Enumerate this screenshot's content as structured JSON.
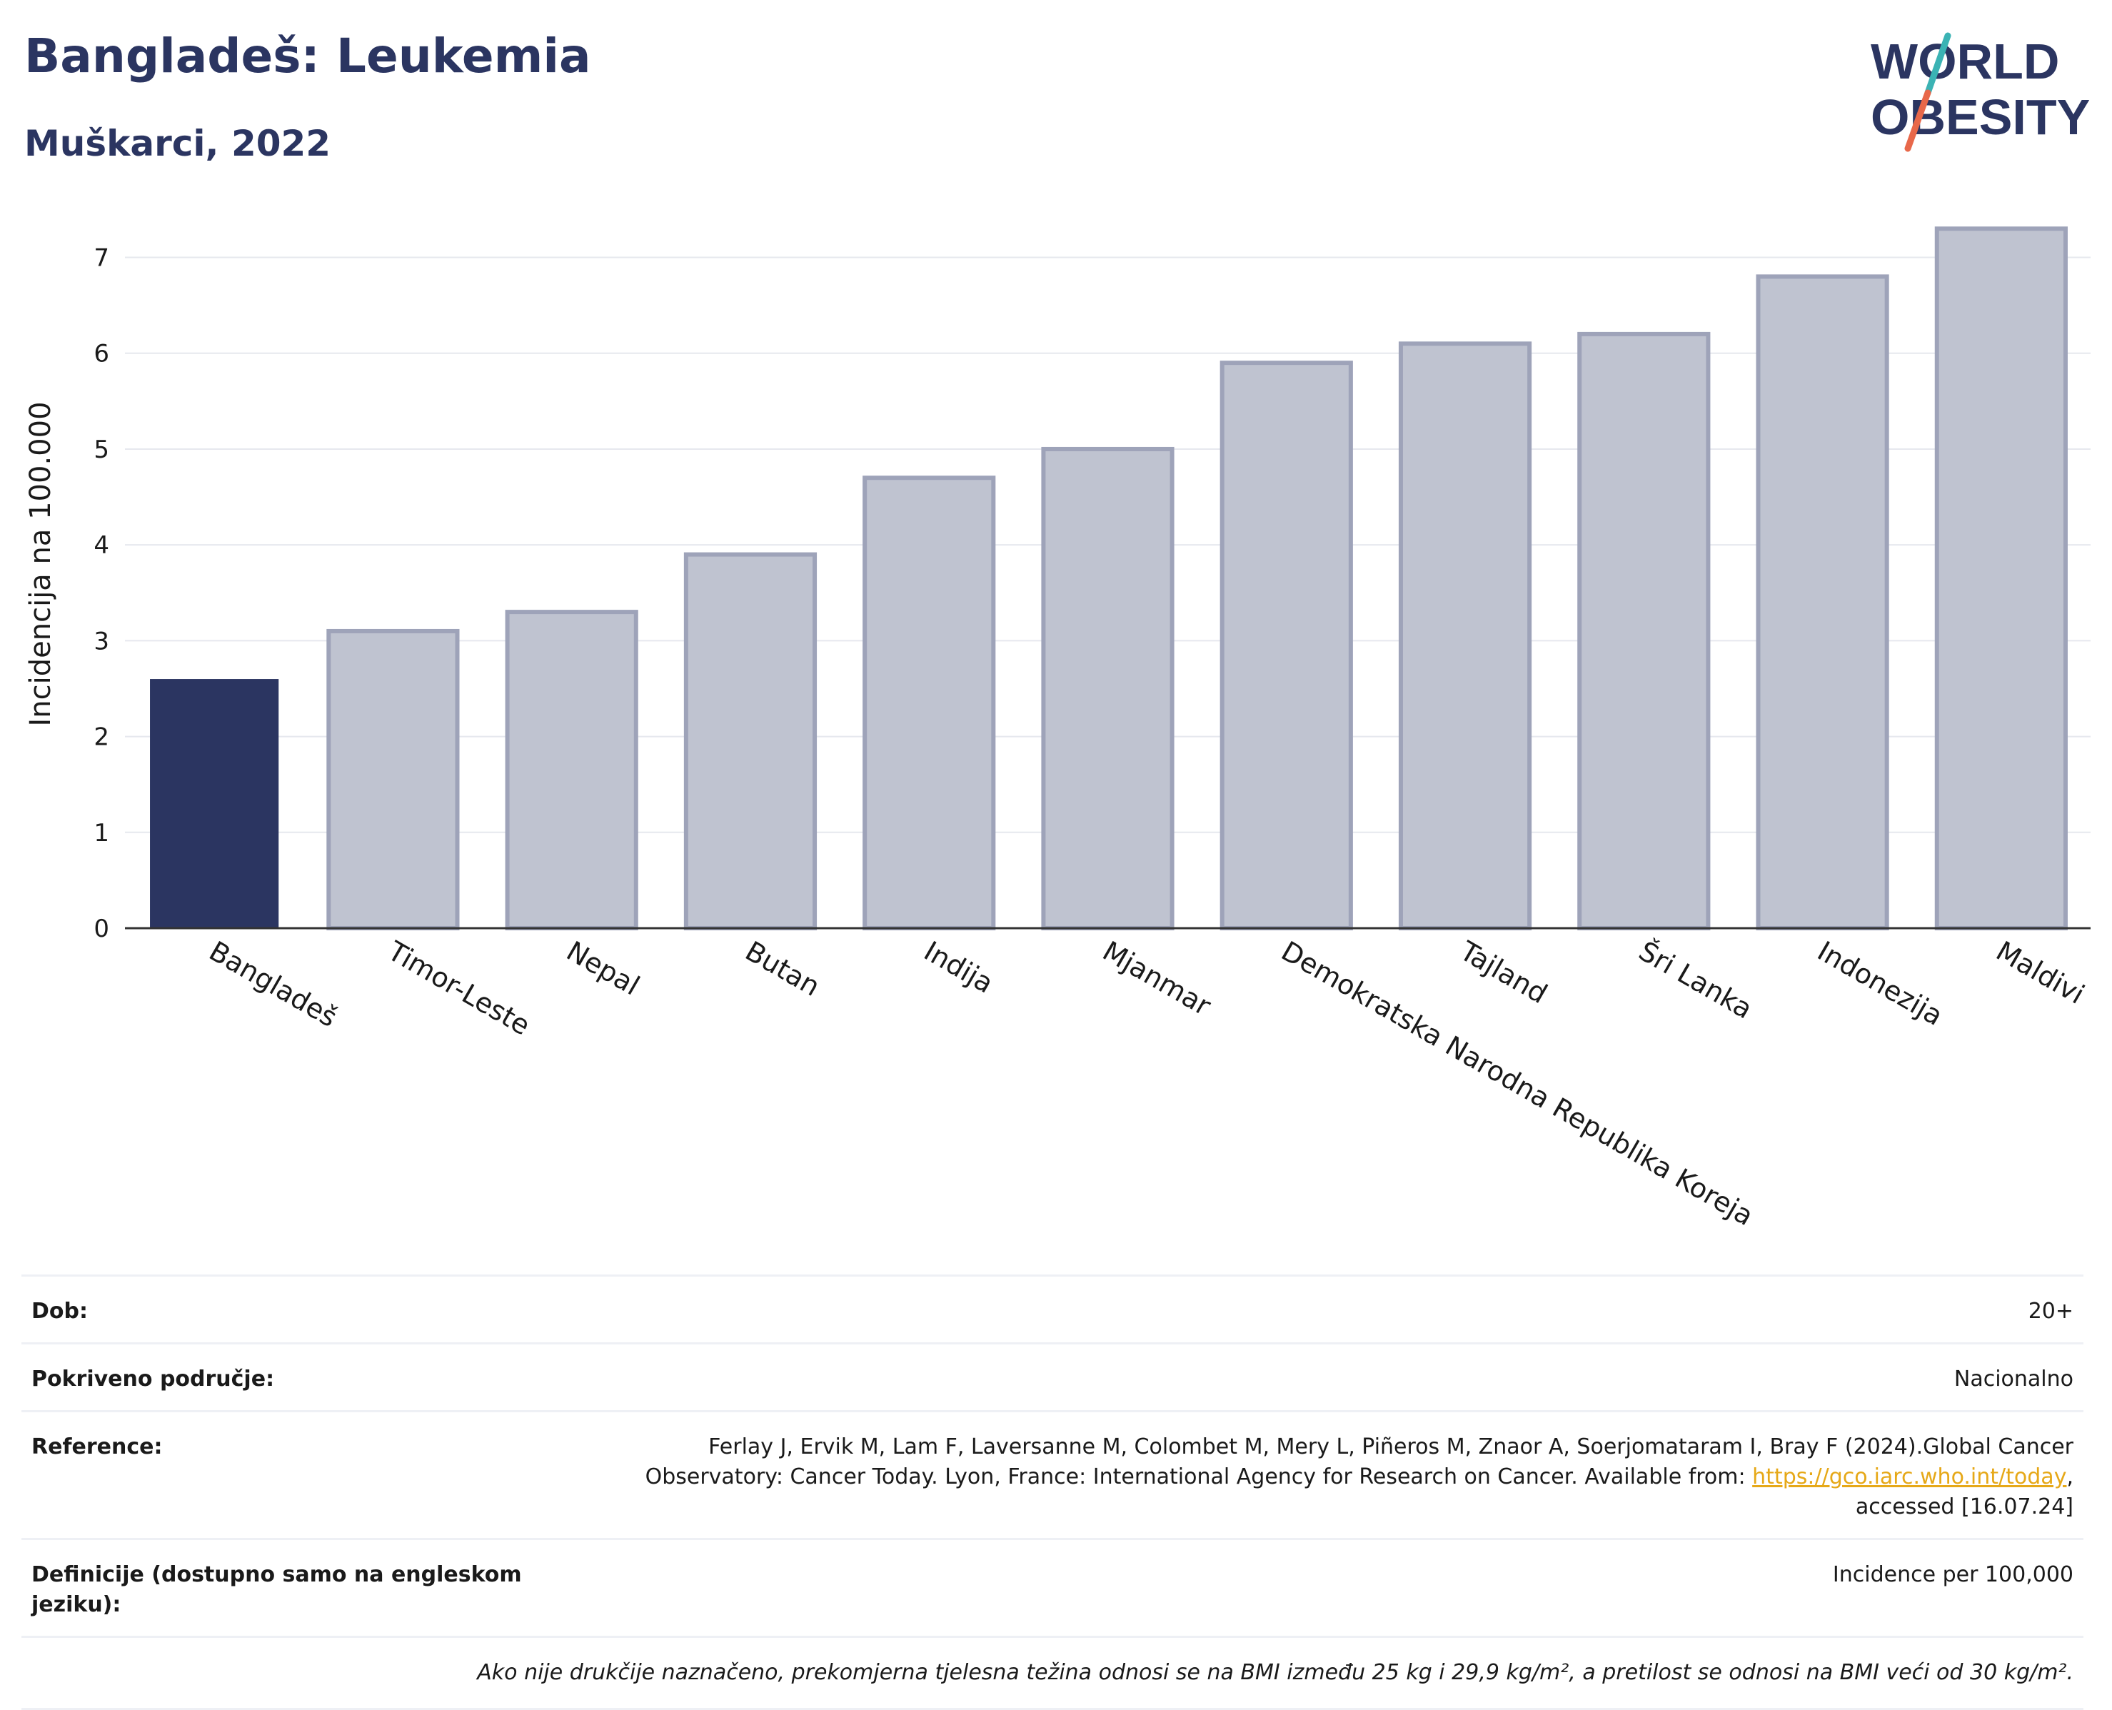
{
  "header": {
    "title": "Bangladeš: Leukemia",
    "subtitle": "Muškarci, 2022"
  },
  "logo": {
    "line1": "WORLD",
    "line2": "OBESITY",
    "accent_colors": [
      "#3bb3b4",
      "#e8684a"
    ],
    "text_color": "#2b3561"
  },
  "chart_data": {
    "type": "bar",
    "title": "Bangladeš: Leukemia",
    "subtitle": "Muškarci, 2022",
    "ylabel": "Incidencija na 100.000",
    "xlabel": "",
    "ylim": [
      0,
      7.6
    ],
    "yticks": [
      0,
      1,
      2,
      3,
      4,
      5,
      6,
      7
    ],
    "grid": true,
    "categories": [
      "Bangladeš",
      "Timor-Leste",
      "Nepal",
      "Butan",
      "Indija",
      "Mjanmar",
      "Demokratska Narodna Republika Koreja",
      "Tajland",
      "Šri Lanka",
      "Indonezija",
      "Maldivi"
    ],
    "values": [
      2.6,
      3.1,
      3.3,
      3.9,
      4.7,
      5.0,
      5.9,
      6.1,
      6.2,
      6.8,
      7.3
    ],
    "highlight_index": 0,
    "colors": {
      "highlight": "#2b3561",
      "other": "#bfc3d0",
      "other_border": "#9ea3b9"
    }
  },
  "meta": {
    "rows": [
      {
        "key": "Dob:",
        "value": "20+"
      },
      {
        "key": "Pokriveno područje:",
        "value": "Nacionalno"
      },
      {
        "key": "Reference:",
        "value_pre": "Ferlay J, Ervik M, Lam F, Laversanne M, Colombet M, Mery L, Piñeros M, Znaor A, Soerjomataram I, Bray F (2024).Global Cancer Observatory: Cancer Today. Lyon, France: International Agency for Research on Cancer. Available from: ",
        "link": "https://gco.iarc.who.int/today",
        "value_post": ", accessed [16.07.24]"
      },
      {
        "key": "Definicije (dostupno samo na engleskom jeziku):",
        "value": "Incidence per 100,000"
      }
    ],
    "note": "Ako nije drukčije naznačeno, prekomjerna tjelesna težina odnosi se na BMI između 25 kg i 29,9 kg/m², a pretilost se odnosi na BMI veći od 30 kg/m²."
  }
}
